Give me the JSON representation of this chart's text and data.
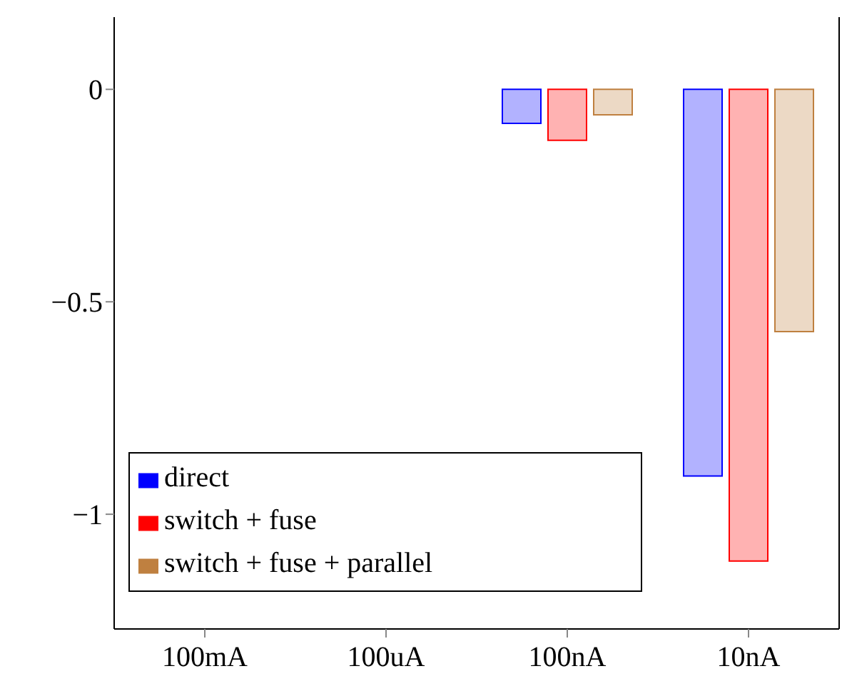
{
  "chart_data": {
    "type": "bar",
    "categories": [
      "100mA",
      "100uA",
      "100nA",
      "10nA"
    ],
    "series": [
      {
        "name": "direct",
        "color": "#0000ff",
        "values": [
          0,
          0,
          -0.08,
          -0.91
        ]
      },
      {
        "name": "switch + fuse",
        "color": "#ff0000",
        "values": [
          0,
          0,
          -0.12,
          -1.11
        ]
      },
      {
        "name": "switch + fuse + parallel",
        "color": "#bf8040",
        "values": [
          0,
          0,
          -0.06,
          -0.57
        ]
      }
    ],
    "ylim": [
      -1.27,
      0.17
    ],
    "yticks": [
      0,
      {
        "value": -0.5,
        "label": "−0.5"
      },
      {
        "value": -1,
        "label": "−1"
      }
    ],
    "legend": "bottom left"
  }
}
